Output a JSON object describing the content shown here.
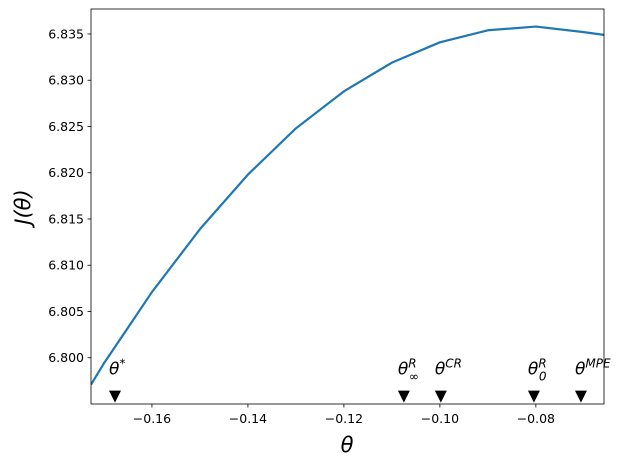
{
  "chart_data": {
    "type": "line",
    "xlabel": "θ",
    "ylabel": "J(θ)",
    "xlim": [
      -0.1727,
      -0.0658
    ],
    "ylim": [
      6.795,
      6.8377
    ],
    "xticks": [
      {
        "value": -0.16,
        "label": "−0.16"
      },
      {
        "value": -0.14,
        "label": "−0.14"
      },
      {
        "value": -0.12,
        "label": "−0.12"
      },
      {
        "value": -0.1,
        "label": "−0.10"
      },
      {
        "value": -0.08,
        "label": "−0.08"
      }
    ],
    "yticks": [
      {
        "value": 6.8,
        "label": "6.800"
      },
      6.805,
      {
        "value": 6.81,
        "label": "6.810"
      },
      6.815,
      {
        "value": 6.82,
        "label": "6.820"
      },
      6.825,
      {
        "value": 6.83,
        "label": "6.830"
      },
      6.835
    ],
    "series": [
      {
        "color": "#1f77b4",
        "x": [
          -0.1727,
          -0.17,
          -0.16,
          -0.15,
          -0.14,
          -0.13,
          -0.12,
          -0.11,
          -0.1,
          -0.09,
          -0.08,
          -0.07,
          -0.0658
        ],
        "values": [
          6.7971,
          6.7994,
          6.8071,
          6.8139,
          6.8198,
          6.8248,
          6.8288,
          6.8319,
          6.8341,
          6.8354,
          6.8358,
          6.8352,
          6.8349
        ]
      }
    ],
    "markers": {
      "color": "#000000",
      "x": [
        -0.1677,
        -0.1075,
        -0.0998,
        -0.0804,
        -0.0706
      ],
      "values": [
        6.7958,
        6.7958,
        6.7958,
        6.7958,
        6.7958
      ],
      "labels": [
        {
          "base": "θ",
          "sup": "*"
        },
        {
          "base": "θ",
          "sup": "R",
          "sub": "∞"
        },
        {
          "base": "θ",
          "sup": "CR"
        },
        {
          "base": "θ",
          "sup": "R",
          "sub": "0"
        },
        {
          "base": "θ",
          "sup": "MPE"
        }
      ]
    }
  }
}
